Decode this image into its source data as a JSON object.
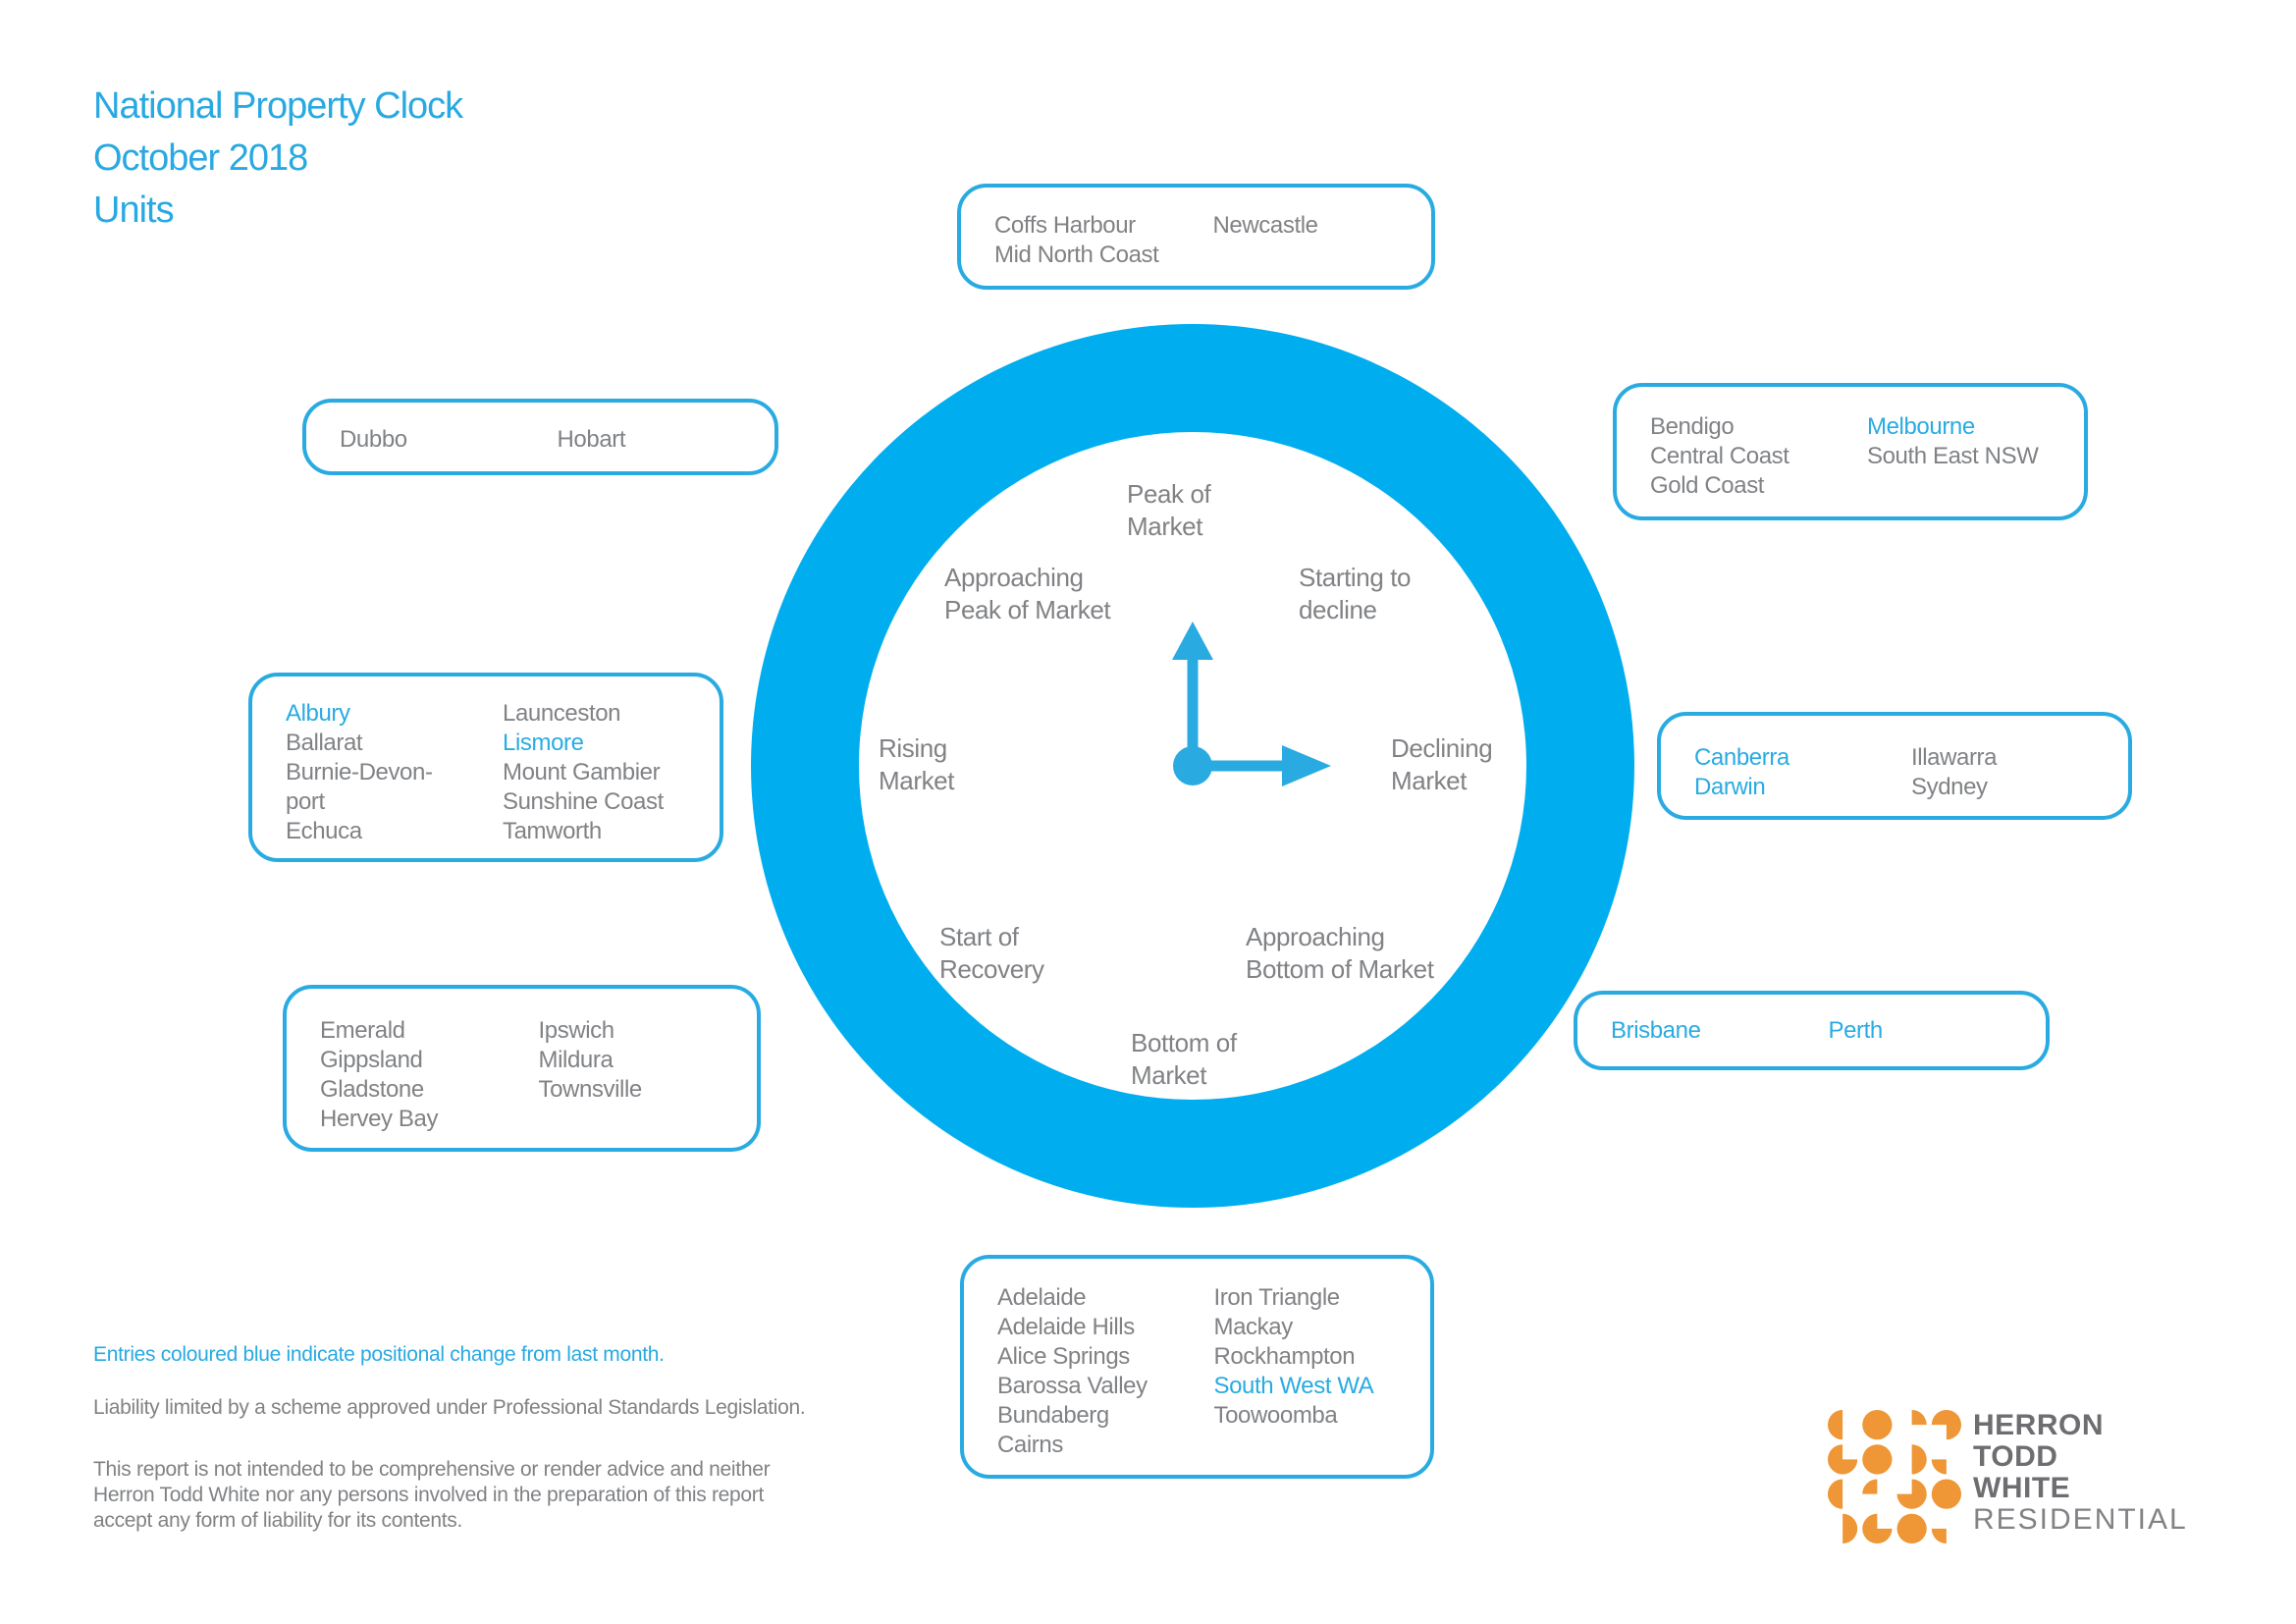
{
  "title": {
    "line1": "National Property Clock",
    "line2": "October 2018",
    "line3": "Units"
  },
  "colors": {
    "accent_blue": "#29abe2",
    "ring_blue": "#00aeef",
    "text_gray": "#808285",
    "logo_orange": "#ef9636",
    "logo_dark_gray": "#6d6e71"
  },
  "clock": {
    "stages": {
      "peak": {
        "line1": "Peak of",
        "line2": "Market"
      },
      "approaching_peak": {
        "line1": "Approaching",
        "line2": "Peak of Market"
      },
      "starting_to_decline": {
        "line1": "Starting to",
        "line2": "decline"
      },
      "rising": {
        "line1": "Rising",
        "line2": "Market"
      },
      "declining": {
        "line1": "Declining",
        "line2": "Market"
      },
      "start_of_recovery": {
        "line1": "Start of",
        "line2": "Recovery"
      },
      "approaching_bottom": {
        "line1": "Approaching",
        "line2": "Bottom of Market"
      },
      "bottom": {
        "line1": "Bottom of",
        "line2": "Market"
      }
    },
    "hands": "pointing to 12 and 3 o'clock"
  },
  "boxes": [
    {
      "id": "peak",
      "stage": "Peak of Market",
      "col1": [
        {
          "text": "Coffs Harbour",
          "changed": false
        },
        {
          "text": "Mid North Coast",
          "changed": false
        }
      ],
      "col2": [
        {
          "text": "Newcastle",
          "changed": false
        }
      ]
    },
    {
      "id": "starting",
      "stage": "Starting to decline",
      "col1": [
        {
          "text": "Bendigo",
          "changed": false
        },
        {
          "text": "Central Coast",
          "changed": false
        },
        {
          "text": "Gold Coast",
          "changed": false
        }
      ],
      "col2": [
        {
          "text": "Melbourne",
          "changed": true
        },
        {
          "text": "South East NSW",
          "changed": false
        }
      ]
    },
    {
      "id": "declining",
      "stage": "Declining Market",
      "col1": [
        {
          "text": "Canberra",
          "changed": true
        },
        {
          "text": "Darwin",
          "changed": true
        }
      ],
      "col2": [
        {
          "text": "Illawarra",
          "changed": false
        },
        {
          "text": "Sydney",
          "changed": false
        }
      ]
    },
    {
      "id": "approaching-bottom",
      "stage": "Approaching Bottom of Market",
      "col1": [
        {
          "text": "Brisbane",
          "changed": true
        }
      ],
      "col2": [
        {
          "text": "Perth",
          "changed": true
        }
      ]
    },
    {
      "id": "bottom",
      "stage": "Bottom of Market",
      "col1": [
        {
          "text": "Adelaide",
          "changed": false
        },
        {
          "text": "Adelaide Hills",
          "changed": false
        },
        {
          "text": "Alice Springs",
          "changed": false
        },
        {
          "text": "Barossa Valley",
          "changed": false
        },
        {
          "text": "Bundaberg",
          "changed": false
        },
        {
          "text": "Cairns",
          "changed": false
        }
      ],
      "col2": [
        {
          "text": "Iron Triangle",
          "changed": false
        },
        {
          "text": "Mackay",
          "changed": false
        },
        {
          "text": "Rockhampton",
          "changed": false
        },
        {
          "text": "South West WA",
          "changed": true
        },
        {
          "text": "Toowoomba",
          "changed": false
        }
      ]
    },
    {
      "id": "start-recovery",
      "stage": "Start of Recovery",
      "col1": [
        {
          "text": "Emerald",
          "changed": false
        },
        {
          "text": "Gippsland",
          "changed": false
        },
        {
          "text": "Gladstone",
          "changed": false
        },
        {
          "text": "Hervey Bay",
          "changed": false
        }
      ],
      "col2": [
        {
          "text": "Ipswich",
          "changed": false
        },
        {
          "text": "Mildura",
          "changed": false
        },
        {
          "text": "Townsville",
          "changed": false
        }
      ]
    },
    {
      "id": "rising",
      "stage": "Rising Market",
      "col1": [
        {
          "text": "Albury",
          "changed": true
        },
        {
          "text": "Ballarat",
          "changed": false
        },
        {
          "text": "Burnie-Devon-\nport",
          "changed": false
        },
        {
          "text": "Echuca",
          "changed": false
        }
      ],
      "col2": [
        {
          "text": "Launceston",
          "changed": false
        },
        {
          "text": "Lismore",
          "changed": true
        },
        {
          "text": "Mount Gambier",
          "changed": false
        },
        {
          "text": "Sunshine Coast",
          "changed": false
        },
        {
          "text": "Tamworth",
          "changed": false
        }
      ]
    },
    {
      "id": "approaching-peak",
      "stage": "Approaching Peak of Market",
      "col1": [
        {
          "text": "Dubbo",
          "changed": false
        }
      ],
      "col2": [
        {
          "text": "Hobart",
          "changed": false
        }
      ]
    }
  ],
  "footer": {
    "note": "Entries coloured blue indicate positional change from last month.",
    "liability": "Liability limited by a scheme approved under Professional Standards Legislation.",
    "disclaimer": "This report is not intended to be comprehensive or render advice and neither Herron Todd White nor any persons involved in the preparation of this report accept any form of liability for its contents."
  },
  "logo": {
    "line1": "HERRON",
    "line2": "TODD",
    "line3": "WHITE",
    "line4": "RESIDENTIAL",
    "dots": [
      "half-l",
      "full",
      "q-tr",
      "tq-bl",
      "tq-tr",
      "full",
      "half-r",
      "q-bl",
      "half-l",
      "q-tl",
      "tq-tl",
      "full",
      "half-r",
      "tq-tr",
      "full",
      "q-bl"
    ]
  }
}
